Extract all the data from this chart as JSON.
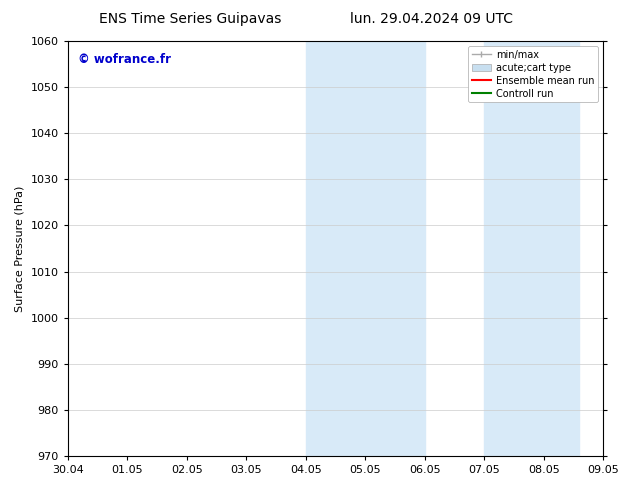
{
  "title_left": "ENS Time Series Guipavas",
  "title_right": "lun. 29.04.2024 09 UTC",
  "ylabel": "Surface Pressure (hPa)",
  "ylim": [
    970,
    1060
  ],
  "yticks": [
    970,
    980,
    990,
    1000,
    1010,
    1020,
    1030,
    1040,
    1050,
    1060
  ],
  "xtick_labels": [
    "30.04",
    "01.05",
    "02.05",
    "03.05",
    "04.05",
    "05.05",
    "06.05",
    "07.05",
    "08.05",
    "09.05"
  ],
  "watermark": "© wofrance.fr",
  "watermark_color": "#0000cc",
  "bg_color": "#ffffff",
  "shaded_color": "#d8eaf8",
  "shaded_regions": [
    {
      "xstart": 4.0,
      "xend": 4.5
    },
    {
      "xstart": 4.5,
      "xend": 6.0
    },
    {
      "xstart": 7.0,
      "xend": 7.5
    },
    {
      "xstart": 7.5,
      "xend": 8.6
    }
  ],
  "legend_entries": [
    {
      "label": "min/max",
      "color": "#aaaaaa",
      "lw": 1,
      "type": "minmax"
    },
    {
      "label": "acute;cart type",
      "color": "#c8dff0",
      "lw": 8,
      "type": "thick"
    },
    {
      "label": "Ensemble mean run",
      "color": "#ff0000",
      "lw": 1.5,
      "type": "line"
    },
    {
      "label": "Controll run",
      "color": "#008000",
      "lw": 1.5,
      "type": "line"
    }
  ],
  "grid_color": "#cccccc",
  "title_fontsize": 10,
  "axis_fontsize": 8,
  "tick_fontsize": 8
}
